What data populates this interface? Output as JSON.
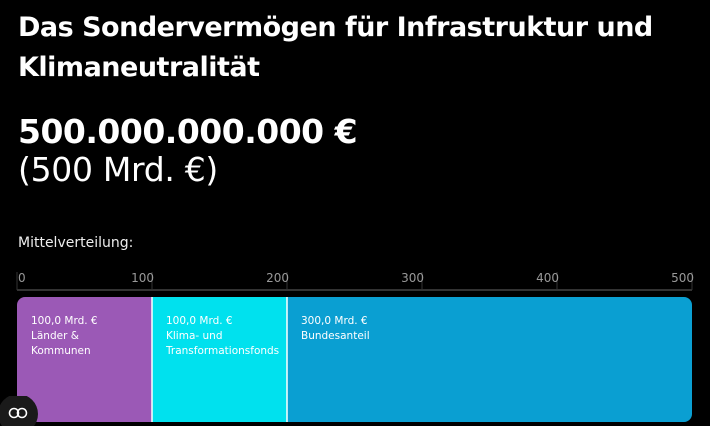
{
  "chart_data": {
    "type": "bar",
    "orientation": "horizontal",
    "stacked": true,
    "title": "Das Sondervermögen für Infrastruktur und Klimaneutralität",
    "subtitle": "500.000.000.000 €",
    "annotations": [
      "(500 Mrd. €)",
      "Mittelverteilung:"
    ],
    "categories": [
      null
    ],
    "series": [
      {
        "name": "Länder & Kommunen",
        "color": "#9b59b6",
        "values": [
          100
        ],
        "value_labels": [
          "100,0 Mrd. €"
        ]
      },
      {
        "name": "Klima- und Transformationsfonds",
        "color": "#00e1ee",
        "values": [
          100
        ],
        "value_labels": [
          "100,0 Mrd. €"
        ]
      },
      {
        "name": "Bundesanteil",
        "color": "#0a9fd2",
        "values": [
          300
        ],
        "value_labels": [
          "300,0 Mrd. €"
        ]
      }
    ],
    "xlim": [
      0,
      500
    ],
    "xticks": [
      0,
      100,
      200,
      300,
      400,
      500
    ],
    "grid": true
  }
}
